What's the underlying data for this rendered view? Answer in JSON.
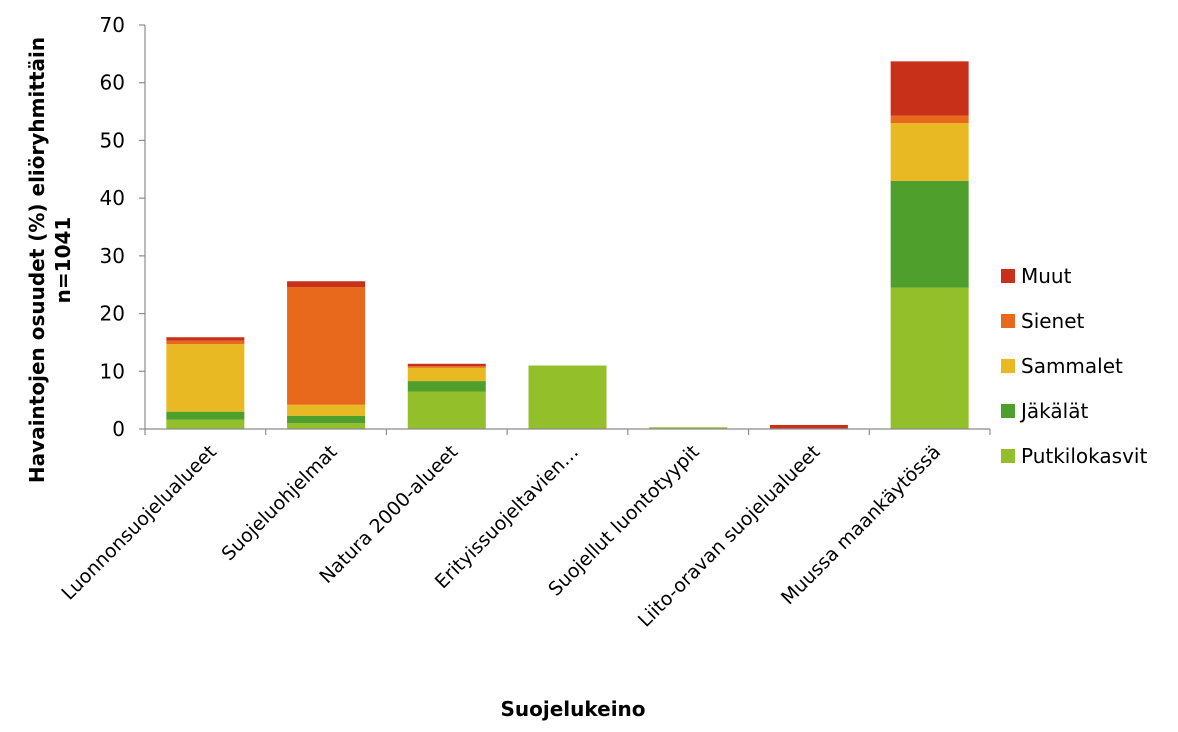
{
  "chart_data": {
    "type": "bar",
    "stacked": true,
    "title": "",
    "xlabel": "Suojelukeino",
    "ylabel": "Havaintojen osuudet (%) eliöryhmittäin",
    "ylabel_line2": "n=1041",
    "ylim": [
      0,
      70
    ],
    "yticks": [
      0,
      10,
      20,
      30,
      40,
      50,
      60,
      70
    ],
    "grid": false,
    "legend_position": "right",
    "categories": [
      "Luonnonsuojelualueet",
      "Suojeluohjelmat",
      "Natura 2000-alueet",
      "Erityissuojeltavien…",
      "Suojellut luontotyypit",
      "Liito-oravan suojelualueet",
      "Muussa maankäytössä"
    ],
    "series": [
      {
        "name": "Putkilokasvit",
        "color": "#93c02a",
        "values": [
          1.6,
          1.0,
          6.5,
          11.0,
          0.3,
          0.1,
          24.5
        ]
      },
      {
        "name": "Jäkälät",
        "color": "#4e9f2b",
        "values": [
          1.4,
          1.3,
          1.8,
          0.0,
          0.0,
          0.0,
          18.5
        ]
      },
      {
        "name": "Sammalet",
        "color": "#e8b923",
        "values": [
          11.7,
          1.9,
          2.3,
          0.0,
          0.0,
          0.0,
          10.0
        ]
      },
      {
        "name": "Sienet",
        "color": "#e8691c",
        "values": [
          0.6,
          20.4,
          0.3,
          0.0,
          0.0,
          0.0,
          1.3
        ]
      },
      {
        "name": "Muut",
        "color": "#c83019",
        "values": [
          0.6,
          1.0,
          0.4,
          0.0,
          0.0,
          0.6,
          9.4
        ]
      }
    ]
  }
}
